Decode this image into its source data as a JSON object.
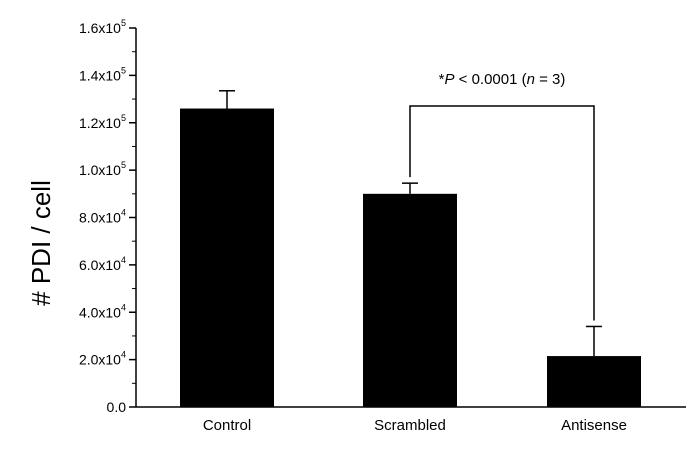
{
  "chart_data": {
    "type": "bar",
    "title": "",
    "xlabel": "",
    "ylabel": "# PDI / cell",
    "categories": [
      "Control",
      "Scrambled",
      "Antisense"
    ],
    "values": [
      126000,
      90000,
      21500
    ],
    "errors": [
      7500,
      4500,
      12500
    ],
    "ylim": [
      0,
      160000
    ],
    "yticks": [
      0,
      20000,
      40000,
      60000,
      80000,
      100000,
      120000,
      140000,
      160000
    ],
    "ytick_labels": [
      {
        "mantissa": "0.0",
        "exp": ""
      },
      {
        "mantissa": "2.0x10",
        "exp": "4"
      },
      {
        "mantissa": "4.0x10",
        "exp": "4"
      },
      {
        "mantissa": "6.0x10",
        "exp": "4"
      },
      {
        "mantissa": "8.0x10",
        "exp": "4"
      },
      {
        "mantissa": "1.0x10",
        "exp": "5"
      },
      {
        "mantissa": "1.2x10",
        "exp": "5"
      },
      {
        "mantissa": "1.4x10",
        "exp": "5"
      },
      {
        "mantissa": "1.6x10",
        "exp": "5"
      }
    ],
    "bar_color": "#000000",
    "grid": false,
    "annotation": {
      "text_prefix": "*",
      "text_p": "P",
      "text_mid": " < 0.0001 (",
      "text_n": "n",
      "text_suffix": " = 3)",
      "from_category": "Scrambled",
      "to_category": "Antisense"
    }
  }
}
